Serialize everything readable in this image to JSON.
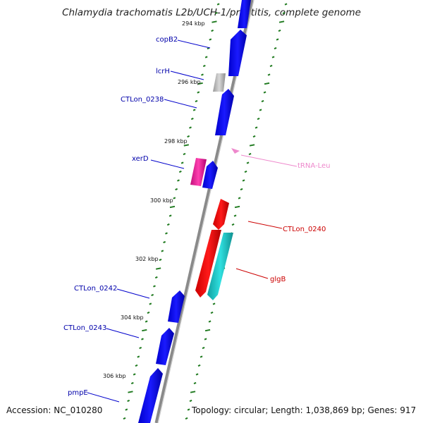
{
  "title": "Chlamydia trachomatis L2b/UCH-1/proctitis, complete genome",
  "footer": {
    "accession": "Accession: NC_010280",
    "summary": "Topology: circular; Length: 1,038,869 bp; Genes: 917"
  },
  "colors": {
    "backbone": "#8a8a8a",
    "tick_green": "#1f7a1f",
    "gene_blue": "#0000ee",
    "label_blue": "#0000aa",
    "gene_red": "#ff0000",
    "label_red": "#cc0000",
    "gene_magenta": "#e8209a",
    "gene_cyan": "#20c8c8",
    "gene_gray": "#b4b4b4",
    "trna_pink": "#ee88cc"
  },
  "scale_labels": [
    "294 kbp",
    "296 kbp",
    "298 kbp",
    "300 kbp",
    "302 kbp",
    "304 kbp",
    "306 kbp"
  ],
  "gene_labels": [
    {
      "text": "copB2",
      "color": "#0000aa"
    },
    {
      "text": "lcrH",
      "color": "#0000aa"
    },
    {
      "text": "CTLon_0238",
      "color": "#0000aa"
    },
    {
      "text": "xerD",
      "color": "#0000aa"
    },
    {
      "text": "tRNA-Leu",
      "color": "#ee88cc"
    },
    {
      "text": "CTLon_0240",
      "color": "#cc0000"
    },
    {
      "text": "glgB",
      "color": "#cc0000"
    },
    {
      "text": "CTLon_0242",
      "color": "#0000aa"
    },
    {
      "text": "CTLon_0243",
      "color": "#0000aa"
    },
    {
      "text": "pmpE",
      "color": "#0000aa"
    }
  ]
}
